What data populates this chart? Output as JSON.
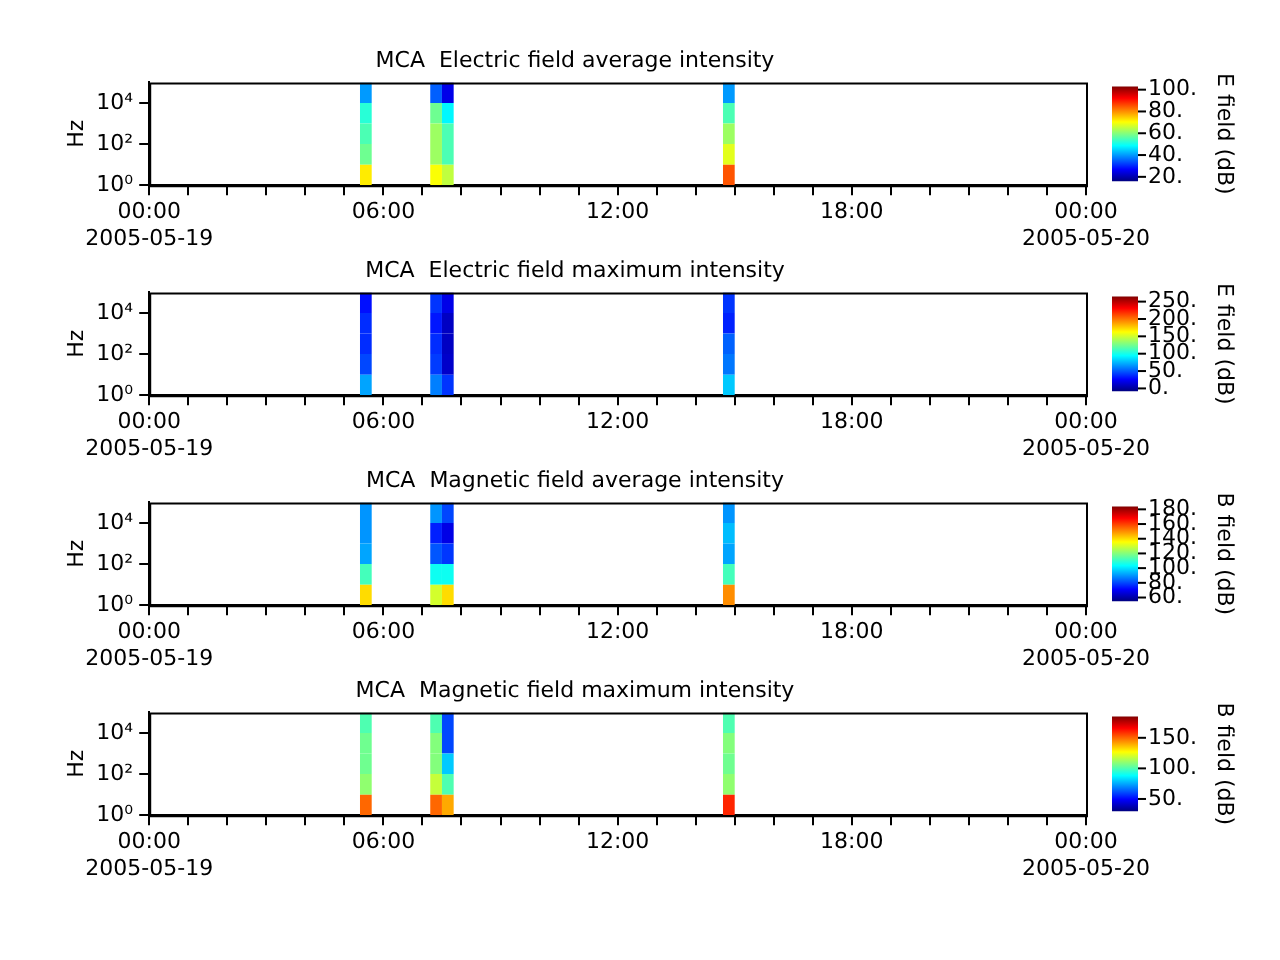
{
  "chart_data": [
    {
      "type": "heatmap",
      "title": "MCA  Electric field average intensity",
      "ylabel": "Hz",
      "clabel": "E field (dB)",
      "xlim": [
        0,
        24
      ],
      "xticks": [
        {
          "value": 0,
          "label": "00:00\n2005-05-19"
        },
        {
          "value": 1,
          "label": null
        },
        {
          "value": 2,
          "label": null
        },
        {
          "value": 3,
          "label": null
        },
        {
          "value": 4,
          "label": null
        },
        {
          "value": 5,
          "label": null
        },
        {
          "value": 6,
          "label": "06:00"
        },
        {
          "value": 7,
          "label": null
        },
        {
          "value": 8,
          "label": null
        },
        {
          "value": 9,
          "label": null
        },
        {
          "value": 10,
          "label": null
        },
        {
          "value": 11,
          "label": null
        },
        {
          "value": 12,
          "label": "12:00"
        },
        {
          "value": 13,
          "label": null
        },
        {
          "value": 14,
          "label": null
        },
        {
          "value": 15,
          "label": null
        },
        {
          "value": 16,
          "label": null
        },
        {
          "value": 17,
          "label": null
        },
        {
          "value": 18,
          "label": "18:00"
        },
        {
          "value": 19,
          "label": null
        },
        {
          "value": 20,
          "label": null
        },
        {
          "value": 21,
          "label": null
        },
        {
          "value": 22,
          "label": null
        },
        {
          "value": 23,
          "label": null
        },
        {
          "value": 24,
          "label": "00:00\n2005-05-20"
        }
      ],
      "ylim": [
        1,
        100000
      ],
      "yticks": [
        {
          "value": 1,
          "label": "10⁰"
        },
        {
          "value": 100,
          "label": "10²"
        },
        {
          "value": 10000,
          "label": "10⁴"
        }
      ],
      "log": "y",
      "grid": false,
      "cells": [
        [
          null,
          null,
          null,
          null,
          null,
          null,
          null,
          null,
          null,
          null,
          null,
          null,
          null,
          null,
          null,
          null,
          null,
          null,
          40,
          null,
          null,
          null,
          null,
          null,
          35,
          25,
          null,
          null,
          null,
          null,
          null,
          null,
          null,
          null,
          null,
          null,
          null,
          null,
          null,
          null,
          null,
          null,
          null,
          null,
          null,
          null,
          null,
          null,
          null,
          40,
          null,
          null,
          null,
          null,
          null,
          null,
          null,
          null,
          null,
          null,
          null,
          null,
          null,
          null,
          null,
          null,
          null,
          null,
          null,
          null,
          null,
          null,
          null,
          null,
          null,
          null,
          null,
          null,
          null,
          null
        ],
        [
          null,
          null,
          null,
          null,
          null,
          null,
          null,
          null,
          null,
          null,
          null,
          null,
          null,
          null,
          null,
          null,
          null,
          null,
          52,
          null,
          null,
          null,
          null,
          null,
          58,
          48,
          null,
          null,
          null,
          null,
          null,
          null,
          null,
          null,
          null,
          null,
          null,
          null,
          null,
          null,
          null,
          null,
          null,
          null,
          null,
          null,
          null,
          null,
          null,
          55,
          null,
          null,
          null,
          null,
          null,
          null,
          null,
          null,
          null,
          null,
          null,
          null,
          null,
          null,
          null,
          null,
          null,
          null,
          null,
          null,
          null,
          null,
          null,
          null,
          null,
          null,
          null,
          null,
          null,
          null
        ],
        [
          null,
          null,
          null,
          null,
          null,
          null,
          null,
          null,
          null,
          null,
          null,
          null,
          null,
          null,
          null,
          null,
          null,
          null,
          55,
          null,
          null,
          null,
          null,
          null,
          62,
          55,
          null,
          null,
          null,
          null,
          null,
          null,
          null,
          null,
          null,
          null,
          null,
          null,
          null,
          null,
          null,
          null,
          null,
          null,
          null,
          null,
          null,
          null,
          null,
          62,
          null,
          null,
          null,
          null,
          null,
          null,
          null,
          null,
          null,
          null,
          null,
          null,
          null,
          null,
          null,
          null,
          null,
          null,
          null,
          null,
          null,
          null,
          null,
          null,
          null,
          null,
          null,
          null,
          null,
          null
        ],
        [
          null,
          null,
          null,
          null,
          null,
          null,
          null,
          null,
          null,
          null,
          null,
          null,
          null,
          null,
          null,
          null,
          null,
          null,
          58,
          null,
          null,
          null,
          null,
          null,
          62,
          55,
          null,
          null,
          null,
          null,
          null,
          null,
          null,
          null,
          null,
          null,
          null,
          null,
          null,
          null,
          null,
          null,
          null,
          null,
          null,
          null,
          null,
          null,
          null,
          68,
          null,
          null,
          null,
          null,
          null,
          null,
          null,
          null,
          null,
          null,
          null,
          null,
          null,
          null,
          null,
          null,
          null,
          null,
          null,
          null,
          null,
          null,
          null,
          null,
          null,
          null,
          null,
          null,
          null,
          null
        ],
        [
          null,
          null,
          null,
          null,
          null,
          null,
          null,
          null,
          null,
          null,
          null,
          null,
          null,
          null,
          null,
          null,
          null,
          null,
          72,
          null,
          null,
          null,
          null,
          null,
          70,
          65,
          null,
          null,
          null,
          null,
          null,
          null,
          null,
          null,
          null,
          null,
          null,
          null,
          null,
          null,
          null,
          null,
          null,
          null,
          null,
          null,
          null,
          null,
          null,
          85,
          null,
          null,
          null,
          null,
          null,
          null,
          null,
          null,
          null,
          null,
          null,
          null,
          null,
          null,
          null,
          null,
          null,
          null,
          null,
          null,
          null,
          null,
          null,
          null,
          null,
          null,
          null,
          null,
          null,
          null
        ]
      ],
      "clim": [
        16,
        103
      ],
      "cticks": [
        {
          "value": 20,
          "label": "20."
        },
        {
          "value": 40,
          "label": "40."
        },
        {
          "value": 60,
          "label": "60."
        },
        {
          "value": 80,
          "label": "80."
        },
        {
          "value": 100,
          "label": "100."
        }
      ]
    },
    {
      "type": "heatmap",
      "title": "MCA  Electric field maximum intensity",
      "ylabel": "Hz",
      "clabel": "E field (dB)",
      "xlim": [
        0,
        24
      ],
      "xticks": [
        {
          "value": 0,
          "label": "00:00\n2005-05-19"
        },
        {
          "value": 1,
          "label": null
        },
        {
          "value": 2,
          "label": null
        },
        {
          "value": 3,
          "label": null
        },
        {
          "value": 4,
          "label": null
        },
        {
          "value": 5,
          "label": null
        },
        {
          "value": 6,
          "label": "06:00"
        },
        {
          "value": 7,
          "label": null
        },
        {
          "value": 8,
          "label": null
        },
        {
          "value": 9,
          "label": null
        },
        {
          "value": 10,
          "label": null
        },
        {
          "value": 11,
          "label": null
        },
        {
          "value": 12,
          "label": "12:00"
        },
        {
          "value": 13,
          "label": null
        },
        {
          "value": 14,
          "label": null
        },
        {
          "value": 15,
          "label": null
        },
        {
          "value": 16,
          "label": null
        },
        {
          "value": 17,
          "label": null
        },
        {
          "value": 18,
          "label": "18:00"
        },
        {
          "value": 19,
          "label": null
        },
        {
          "value": 20,
          "label": null
        },
        {
          "value": 21,
          "label": null
        },
        {
          "value": 22,
          "label": null
        },
        {
          "value": 23,
          "label": null
        },
        {
          "value": 24,
          "label": "00:00\n2005-05-20"
        }
      ],
      "ylim": [
        1,
        100000
      ],
      "yticks": [
        {
          "value": 1,
          "label": "10⁰"
        },
        {
          "value": 100,
          "label": "10²"
        },
        {
          "value": 10000,
          "label": "10⁴"
        }
      ],
      "log": "y",
      "grid": false,
      "cells": [
        [
          null,
          null,
          null,
          null,
          null,
          null,
          null,
          null,
          null,
          null,
          null,
          null,
          null,
          null,
          null,
          null,
          null,
          null,
          30,
          null,
          null,
          null,
          null,
          null,
          40,
          20,
          null,
          null,
          null,
          null,
          null,
          null,
          null,
          null,
          null,
          null,
          null,
          null,
          null,
          null,
          null,
          null,
          null,
          null,
          null,
          null,
          null,
          null,
          null,
          40,
          null,
          null,
          null,
          null,
          null,
          null,
          null,
          null,
          null,
          null,
          null,
          null,
          null,
          null,
          null,
          null,
          null,
          null,
          null,
          null,
          null,
          null,
          null,
          null,
          null,
          null,
          null,
          null,
          null,
          null
        ],
        [
          null,
          null,
          null,
          null,
          null,
          null,
          null,
          null,
          null,
          null,
          null,
          null,
          null,
          null,
          null,
          null,
          null,
          null,
          38,
          null,
          null,
          null,
          null,
          null,
          32,
          10,
          null,
          null,
          null,
          null,
          null,
          null,
          null,
          null,
          null,
          null,
          null,
          null,
          null,
          null,
          null,
          null,
          null,
          null,
          null,
          null,
          null,
          null,
          null,
          35,
          null,
          null,
          null,
          null,
          null,
          null,
          null,
          null,
          null,
          null,
          null,
          null,
          null,
          null,
          null,
          null,
          null,
          null,
          null,
          null,
          null,
          null,
          null,
          null,
          null,
          null,
          null,
          null,
          null,
          null
        ],
        [
          null,
          null,
          null,
          null,
          null,
          null,
          null,
          null,
          null,
          null,
          null,
          null,
          null,
          null,
          null,
          null,
          null,
          null,
          38,
          null,
          null,
          null,
          null,
          null,
          38,
          10,
          null,
          null,
          null,
          null,
          null,
          null,
          null,
          null,
          null,
          null,
          null,
          null,
          null,
          null,
          null,
          null,
          null,
          null,
          null,
          null,
          null,
          null,
          null,
          52,
          null,
          null,
          null,
          null,
          null,
          null,
          null,
          null,
          null,
          null,
          null,
          null,
          null,
          null,
          null,
          null,
          null,
          null,
          null,
          null,
          null,
          null,
          null,
          null,
          null,
          null,
          null,
          null,
          null,
          null
        ],
        [
          null,
          null,
          null,
          null,
          null,
          null,
          null,
          null,
          null,
          null,
          null,
          null,
          null,
          null,
          null,
          null,
          null,
          null,
          45,
          null,
          null,
          null,
          null,
          null,
          42,
          12,
          null,
          null,
          null,
          null,
          null,
          null,
          null,
          null,
          null,
          null,
          null,
          null,
          null,
          null,
          null,
          null,
          null,
          null,
          null,
          null,
          null,
          null,
          null,
          58,
          null,
          null,
          null,
          null,
          null,
          null,
          null,
          null,
          null,
          null,
          null,
          null,
          null,
          null,
          null,
          null,
          null,
          null,
          null,
          null,
          null,
          null,
          null,
          null,
          null,
          null,
          null,
          null,
          null,
          null
        ],
        [
          null,
          null,
          null,
          null,
          null,
          null,
          null,
          null,
          null,
          null,
          null,
          null,
          null,
          null,
          null,
          null,
          null,
          null,
          70,
          null,
          null,
          null,
          null,
          null,
          60,
          40,
          null,
          null,
          null,
          null,
          null,
          null,
          null,
          null,
          null,
          null,
          null,
          null,
          null,
          null,
          null,
          null,
          null,
          null,
          null,
          null,
          null,
          null,
          null,
          80,
          null,
          null,
          null,
          null,
          null,
          null,
          null,
          null,
          null,
          null,
          null,
          null,
          null,
          null,
          null,
          null,
          null,
          null,
          null,
          null,
          null,
          null,
          null,
          null,
          null,
          null,
          null,
          null,
          null,
          null
        ]
      ],
      "clim": [
        -8,
        265
      ],
      "cticks": [
        {
          "value": 0,
          "label": "0."
        },
        {
          "value": 50,
          "label": "50."
        },
        {
          "value": 100,
          "label": "100."
        },
        {
          "value": 150,
          "label": "150."
        },
        {
          "value": 200,
          "label": "200."
        },
        {
          "value": 250,
          "label": "250."
        }
      ]
    },
    {
      "type": "heatmap",
      "title": "MCA  Magnetic field average intensity",
      "ylabel": "Hz",
      "clabel": "B field (dB)",
      "xlim": [
        0,
        24
      ],
      "xticks": [
        {
          "value": 0,
          "label": "00:00\n2005-05-19"
        },
        {
          "value": 1,
          "label": null
        },
        {
          "value": 2,
          "label": null
        },
        {
          "value": 3,
          "label": null
        },
        {
          "value": 4,
          "label": null
        },
        {
          "value": 5,
          "label": null
        },
        {
          "value": 6,
          "label": "06:00"
        },
        {
          "value": 7,
          "label": null
        },
        {
          "value": 8,
          "label": null
        },
        {
          "value": 9,
          "label": null
        },
        {
          "value": 10,
          "label": null
        },
        {
          "value": 11,
          "label": null
        },
        {
          "value": 12,
          "label": "12:00"
        },
        {
          "value": 13,
          "label": null
        },
        {
          "value": 14,
          "label": null
        },
        {
          "value": 15,
          "label": null
        },
        {
          "value": 16,
          "label": null
        },
        {
          "value": 17,
          "label": null
        },
        {
          "value": 18,
          "label": "18:00"
        },
        {
          "value": 19,
          "label": null
        },
        {
          "value": 20,
          "label": null
        },
        {
          "value": 21,
          "label": null
        },
        {
          "value": 22,
          "label": null
        },
        {
          "value": 23,
          "label": null
        },
        {
          "value": 24,
          "label": "00:00\n2005-05-20"
        }
      ],
      "ylim": [
        1,
        100000
      ],
      "yticks": [
        {
          "value": 1,
          "label": "10⁰"
        },
        {
          "value": 100,
          "label": "10²"
        },
        {
          "value": 10000,
          "label": "10⁴"
        }
      ],
      "log": "y",
      "grid": false,
      "cells": [
        [
          null,
          null,
          null,
          null,
          null,
          null,
          null,
          null,
          null,
          null,
          null,
          null,
          null,
          null,
          null,
          null,
          null,
          null,
          90,
          null,
          null,
          null,
          null,
          null,
          90,
          80,
          null,
          null,
          null,
          null,
          null,
          null,
          null,
          null,
          null,
          null,
          null,
          null,
          null,
          null,
          null,
          null,
          null,
          null,
          null,
          null,
          null,
          null,
          null,
          90,
          null,
          null,
          null,
          null,
          null,
          null,
          null,
          null,
          null,
          null,
          null,
          null,
          null,
          null,
          null,
          null,
          null,
          null,
          null,
          null,
          null,
          null,
          null,
          null,
          null,
          null,
          null,
          null,
          null,
          null
        ],
        [
          null,
          null,
          null,
          null,
          null,
          null,
          null,
          null,
          null,
          null,
          null,
          null,
          null,
          null,
          null,
          null,
          null,
          null,
          90,
          null,
          null,
          null,
          null,
          null,
          75,
          68,
          null,
          null,
          null,
          null,
          null,
          null,
          null,
          null,
          null,
          null,
          null,
          null,
          null,
          null,
          null,
          null,
          null,
          null,
          null,
          null,
          null,
          null,
          null,
          95,
          null,
          null,
          null,
          null,
          null,
          null,
          null,
          null,
          null,
          null,
          null,
          null,
          null,
          null,
          null,
          null,
          null,
          null,
          null,
          null,
          null,
          null,
          null,
          null,
          null,
          null,
          null,
          null,
          null,
          null
        ],
        [
          null,
          null,
          null,
          null,
          null,
          null,
          null,
          null,
          null,
          null,
          null,
          null,
          null,
          null,
          null,
          null,
          null,
          null,
          92,
          null,
          null,
          null,
          null,
          null,
          82,
          78,
          null,
          null,
          null,
          null,
          null,
          null,
          null,
          null,
          null,
          null,
          null,
          null,
          null,
          null,
          null,
          null,
          null,
          null,
          null,
          null,
          null,
          null,
          null,
          92,
          null,
          null,
          null,
          null,
          null,
          null,
          null,
          null,
          null,
          null,
          null,
          null,
          null,
          null,
          null,
          null,
          null,
          null,
          null,
          null,
          null,
          null,
          null,
          null,
          null,
          null,
          null,
          null,
          null,
          null
        ],
        [
          null,
          null,
          null,
          null,
          null,
          null,
          null,
          null,
          null,
          null,
          null,
          null,
          null,
          null,
          null,
          null,
          null,
          null,
          112,
          null,
          null,
          null,
          null,
          null,
          105,
          105,
          null,
          null,
          null,
          null,
          null,
          null,
          null,
          null,
          null,
          null,
          null,
          null,
          null,
          null,
          null,
          null,
          null,
          null,
          null,
          null,
          null,
          null,
          null,
          112,
          null,
          null,
          null,
          null,
          null,
          null,
          null,
          null,
          null,
          null,
          null,
          null,
          null,
          null,
          null,
          null,
          null,
          null,
          null,
          null,
          null,
          null,
          null,
          null,
          null,
          null,
          null,
          null,
          null,
          null
        ],
        [
          null,
          null,
          null,
          null,
          null,
          null,
          null,
          null,
          null,
          null,
          null,
          null,
          null,
          null,
          null,
          null,
          null,
          null,
          140,
          null,
          null,
          null,
          null,
          null,
          130,
          140,
          null,
          null,
          null,
          null,
          null,
          null,
          null,
          null,
          null,
          null,
          null,
          null,
          null,
          null,
          null,
          null,
          null,
          null,
          null,
          null,
          null,
          null,
          null,
          150,
          null,
          null,
          null,
          null,
          null,
          null,
          null,
          null,
          null,
          null,
          null,
          null,
          null,
          null,
          null,
          null,
          null,
          null,
          null,
          null,
          null,
          null,
          null,
          null,
          null,
          null,
          null,
          null,
          null,
          null
        ]
      ],
      "clim": [
        55,
        184
      ],
      "cticks": [
        {
          "value": 60,
          "label": "60."
        },
        {
          "value": 80,
          "label": "80."
        },
        {
          "value": 100,
          "label": "100."
        },
        {
          "value": 120,
          "label": "120."
        },
        {
          "value": 140,
          "label": "140."
        },
        {
          "value": 160,
          "label": "160."
        },
        {
          "value": 180,
          "label": "180."
        }
      ]
    },
    {
      "type": "heatmap",
      "title": "MCA  Magnetic field maximum intensity",
      "ylabel": "Hz",
      "clabel": "B field (dB)",
      "xlim": [
        0,
        24
      ],
      "xticks": [
        {
          "value": 0,
          "label": "00:00\n2005-05-19"
        },
        {
          "value": 1,
          "label": null
        },
        {
          "value": 2,
          "label": null
        },
        {
          "value": 3,
          "label": null
        },
        {
          "value": 4,
          "label": null
        },
        {
          "value": 5,
          "label": null
        },
        {
          "value": 6,
          "label": "06:00"
        },
        {
          "value": 7,
          "label": null
        },
        {
          "value": 8,
          "label": null
        },
        {
          "value": 9,
          "label": null
        },
        {
          "value": 10,
          "label": null
        },
        {
          "value": 11,
          "label": null
        },
        {
          "value": 12,
          "label": "12:00"
        },
        {
          "value": 13,
          "label": null
        },
        {
          "value": 14,
          "label": null
        },
        {
          "value": 15,
          "label": null
        },
        {
          "value": 16,
          "label": null
        },
        {
          "value": 17,
          "label": null
        },
        {
          "value": 18,
          "label": "18:00"
        },
        {
          "value": 19,
          "label": null
        },
        {
          "value": 20,
          "label": null
        },
        {
          "value": 21,
          "label": null
        },
        {
          "value": 22,
          "label": null
        },
        {
          "value": 23,
          "label": null
        },
        {
          "value": 24,
          "label": "00:00\n2005-05-20"
        }
      ],
      "ylim": [
        1,
        100000
      ],
      "yticks": [
        {
          "value": 1,
          "label": "10⁰"
        },
        {
          "value": 100,
          "label": "10²"
        },
        {
          "value": 10000,
          "label": "10⁴"
        }
      ],
      "log": "y",
      "grid": false,
      "cells": [
        [
          null,
          null,
          null,
          null,
          null,
          null,
          null,
          null,
          null,
          null,
          null,
          null,
          null,
          null,
          null,
          null,
          null,
          null,
          100,
          null,
          null,
          null,
          null,
          null,
          100,
          60,
          null,
          null,
          null,
          null,
          null,
          null,
          null,
          null,
          null,
          null,
          null,
          null,
          null,
          null,
          null,
          null,
          null,
          null,
          null,
          null,
          null,
          null,
          null,
          100,
          null,
          null,
          null,
          null,
          null,
          null,
          null,
          null,
          null,
          null,
          null,
          null,
          null,
          null,
          null,
          null,
          null,
          null,
          null,
          null,
          null,
          null,
          null,
          null,
          null,
          null,
          null,
          null,
          null,
          null
        ],
        [
          null,
          null,
          null,
          null,
          null,
          null,
          null,
          null,
          null,
          null,
          null,
          null,
          null,
          null,
          null,
          null,
          null,
          null,
          105,
          null,
          null,
          null,
          null,
          null,
          108,
          60,
          null,
          null,
          null,
          null,
          null,
          null,
          null,
          null,
          null,
          null,
          null,
          null,
          null,
          null,
          null,
          null,
          null,
          null,
          null,
          null,
          null,
          null,
          null,
          108,
          null,
          null,
          null,
          null,
          null,
          null,
          null,
          null,
          null,
          null,
          null,
          null,
          null,
          null,
          null,
          null,
          null,
          null,
          null,
          null,
          null,
          null,
          null,
          null,
          null,
          null,
          null,
          null,
          null,
          null
        ],
        [
          null,
          null,
          null,
          null,
          null,
          null,
          null,
          null,
          null,
          null,
          null,
          null,
          null,
          null,
          null,
          null,
          null,
          null,
          105,
          null,
          null,
          null,
          null,
          null,
          108,
          80,
          null,
          null,
          null,
          null,
          null,
          null,
          null,
          null,
          null,
          null,
          null,
          null,
          null,
          null,
          null,
          null,
          null,
          null,
          null,
          null,
          null,
          null,
          null,
          105,
          null,
          null,
          null,
          null,
          null,
          null,
          null,
          null,
          null,
          null,
          null,
          null,
          null,
          null,
          null,
          null,
          null,
          null,
          null,
          null,
          null,
          null,
          null,
          null,
          null,
          null,
          null,
          null,
          null,
          null
        ],
        [
          null,
          null,
          null,
          null,
          null,
          null,
          null,
          null,
          null,
          null,
          null,
          null,
          null,
          null,
          null,
          null,
          null,
          null,
          110,
          null,
          null,
          null,
          null,
          null,
          118,
          100,
          null,
          null,
          null,
          null,
          null,
          null,
          null,
          null,
          null,
          null,
          null,
          null,
          null,
          null,
          null,
          null,
          null,
          null,
          null,
          null,
          null,
          null,
          null,
          110,
          null,
          null,
          null,
          null,
          null,
          null,
          null,
          null,
          null,
          null,
          null,
          null,
          null,
          null,
          null,
          null,
          null,
          null,
          null,
          null,
          null,
          null,
          null,
          null,
          null,
          null,
          null,
          null,
          null,
          null
        ],
        [
          null,
          null,
          null,
          null,
          null,
          null,
          null,
          null,
          null,
          null,
          null,
          null,
          null,
          null,
          null,
          null,
          null,
          null,
          150,
          null,
          null,
          null,
          null,
          null,
          150,
          140,
          null,
          null,
          null,
          null,
          null,
          null,
          null,
          null,
          null,
          null,
          null,
          null,
          null,
          null,
          null,
          null,
          null,
          null,
          null,
          null,
          null,
          null,
          null,
          160,
          null,
          null,
          null,
          null,
          null,
          null,
          null,
          null,
          null,
          null,
          null,
          null,
          null,
          null,
          null,
          null,
          null,
          null,
          null,
          null,
          null,
          null,
          null,
          null,
          null,
          null,
          null,
          null,
          null,
          null
        ]
      ],
      "clim": [
        30,
        185
      ],
      "cticks": [
        {
          "value": 50,
          "label": "50."
        },
        {
          "value": 100,
          "label": "100."
        },
        {
          "value": 150,
          "label": "150."
        }
      ]
    }
  ]
}
